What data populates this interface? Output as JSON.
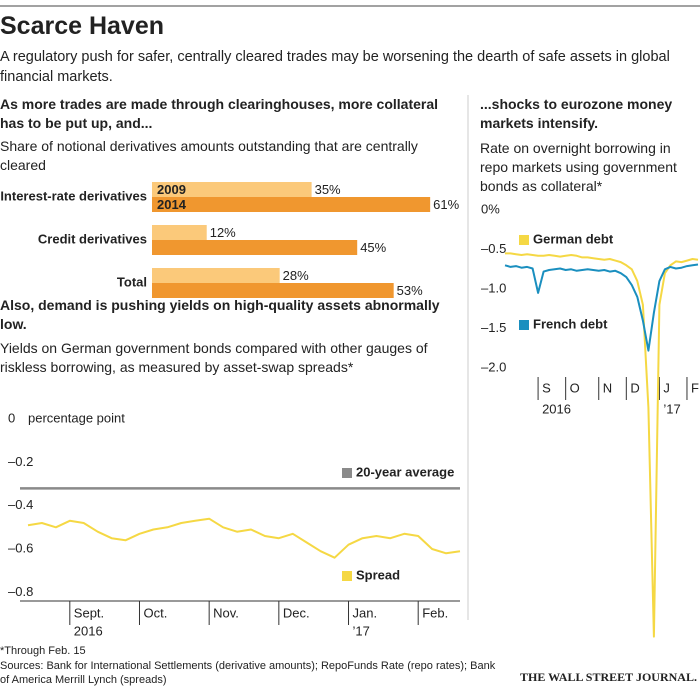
{
  "header": {
    "title": "Scarce Haven",
    "subtitle": "A regulatory push for safer, centrally cleared trades may be worsening the dearth of safe assets in global financial markets."
  },
  "chart_data": [
    {
      "type": "bar",
      "orientation": "horizontal",
      "title": "As more trades are made through clearinghouses, more collateral has to be put up, and...",
      "subtitle": "Share of notional derivatives amounts outstanding that are centrally cleared",
      "categories": [
        "Interest-rate derivatives",
        "Credit derivatives",
        "Total"
      ],
      "series": [
        {
          "name": "2009",
          "color": "#fbc97a",
          "values": [
            35,
            12,
            28
          ],
          "value_labels": [
            "35%",
            "12%",
            "28%"
          ]
        },
        {
          "name": "2014",
          "color": "#f0972f",
          "values": [
            61,
            45,
            53
          ],
          "value_labels": [
            "61%",
            "45%",
            "53%"
          ]
        }
      ]
    },
    {
      "type": "line",
      "title": "Also, demand is pushing yields on high-quality assets abnormally low.",
      "subtitle": "Yields on German government bonds compared with other gauges of riskless borrowing, as measured by asset-swap spreads*",
      "y_unit": "percentage point",
      "categories": [
        null,
        null,
        null,
        "Sept.",
        null,
        null,
        null,
        null,
        "Oct.",
        null,
        null,
        null,
        null,
        "Nov.",
        null,
        null,
        null,
        null,
        "Dec.",
        null,
        null,
        null,
        null,
        "Jan.",
        null,
        null,
        null,
        null,
        "Feb.",
        null,
        null,
        null
      ],
      "category_years": [
        null,
        null,
        null,
        "2016",
        null,
        null,
        null,
        null,
        null,
        null,
        null,
        null,
        null,
        null,
        null,
        null,
        null,
        null,
        null,
        null,
        null,
        null,
        null,
        "’17",
        null,
        null,
        null,
        null,
        null,
        null,
        null,
        null
      ],
      "series": [
        {
          "name": "Spread",
          "color": "#f5d844",
          "values": [
            -0.49,
            -0.48,
            -0.5,
            -0.47,
            -0.48,
            -0.52,
            -0.55,
            -0.56,
            -0.53,
            -0.51,
            -0.5,
            -0.48,
            -0.47,
            -0.46,
            -0.5,
            -0.52,
            -0.51,
            -0.54,
            -0.55,
            -0.53,
            -0.57,
            -0.61,
            -0.64,
            -0.58,
            -0.55,
            -0.54,
            -0.55,
            -0.53,
            -0.54,
            -0.6,
            -0.62,
            -0.61
          ]
        }
      ],
      "reference": {
        "name": "20-year average",
        "value": -0.32,
        "color": "#8a8a8a"
      },
      "ylim": [
        -0.84,
        0
      ],
      "yticks": [
        0,
        {
          "value": -0.2,
          "label": "–0.2"
        },
        {
          "value": -0.4,
          "label": "–0.4"
        },
        {
          "value": -0.6,
          "label": "–0.6"
        },
        {
          "value": -0.8,
          "label": "–0.8"
        }
      ],
      "grid": false
    },
    {
      "type": "line",
      "title": "...shocks to eurozone money markets intensify.",
      "subtitle": "Rate on overnight borrowing in repo markets using government bonds as collateral*",
      "categories": [
        null,
        null,
        null,
        null,
        null,
        null,
        "S",
        null,
        null,
        null,
        null,
        "O",
        null,
        null,
        null,
        null,
        null,
        "N",
        null,
        null,
        null,
        null,
        "D",
        null,
        null,
        null,
        null,
        null,
        "J",
        null,
        null,
        null,
        null,
        "F",
        null,
        null
      ],
      "category_years": [
        null,
        null,
        null,
        null,
        null,
        null,
        "2016",
        null,
        null,
        null,
        null,
        null,
        null,
        null,
        null,
        null,
        null,
        null,
        null,
        null,
        null,
        null,
        null,
        null,
        null,
        null,
        null,
        null,
        "’17",
        null,
        null,
        null,
        null,
        null,
        null,
        null
      ],
      "series": [
        {
          "name": "German debt",
          "color": "#f5d844",
          "values": [
            -0.55,
            -0.55,
            -0.56,
            -0.57,
            -0.56,
            -0.57,
            -0.58,
            -0.58,
            -0.57,
            -0.58,
            -0.59,
            -0.58,
            -0.57,
            -0.58,
            -0.6,
            -0.6,
            -0.61,
            -0.62,
            -0.63,
            -0.62,
            -0.64,
            -0.66,
            -0.7,
            -0.75,
            -0.9,
            -1.2,
            -2.5,
            -5.4,
            -1.2,
            -0.8,
            -0.7,
            -0.65,
            -0.66,
            -0.64,
            -0.62,
            -0.63
          ]
        },
        {
          "name": "French debt",
          "color": "#1a8fbf",
          "values": [
            -0.7,
            -0.72,
            -0.71,
            -0.73,
            -0.72,
            -0.74,
            -1.05,
            -0.78,
            -0.76,
            -0.75,
            -0.74,
            -0.76,
            -0.75,
            -0.77,
            -0.76,
            -0.75,
            -0.76,
            -0.77,
            -0.76,
            -0.78,
            -0.77,
            -0.8,
            -0.85,
            -0.95,
            -1.1,
            -1.4,
            -1.78,
            -1.3,
            -0.9,
            -0.75,
            -0.72,
            -0.74,
            -0.73,
            -0.71,
            -0.7,
            -0.69
          ]
        }
      ],
      "ylim": [
        -5.5,
        0
      ],
      "yticks": [
        {
          "value": 0,
          "label": "0%"
        },
        {
          "value": -0.5,
          "label": "–0.5"
        },
        {
          "value": -1.0,
          "label": "–1.0"
        },
        {
          "value": -1.5,
          "label": "–1.5"
        },
        {
          "value": -2.0,
          "label": "–2.0"
        }
      ],
      "grid": false
    }
  ],
  "footer": {
    "note": "*Through Feb. 15",
    "sources": "Sources: Bank for International Settlements (derivative amounts); RepoFunds Rate (repo rates); Bank of America Merrill Lynch (spreads)",
    "brand": "THE WALL STREET JOURNAL."
  }
}
